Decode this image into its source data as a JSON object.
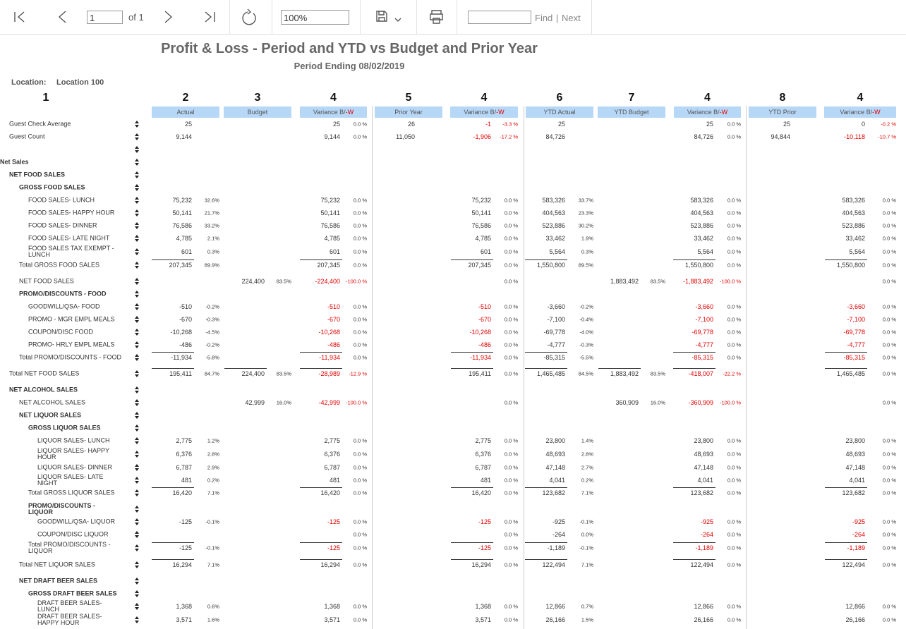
{
  "toolbar": {
    "page": "1",
    "of": "of 1",
    "zoom": "100%",
    "find": "Find",
    "divider": "|",
    "next": "Next"
  },
  "report": {
    "title": "Profit & Loss - Period and YTD vs Budget and Prior Year",
    "subtitle": "Period Ending 08/02/2019",
    "location_label": "Location:",
    "location": "Location 100",
    "column_numbers": [
      "1",
      "2",
      "3",
      "4",
      "5",
      "4",
      "6",
      "7",
      "4",
      "8",
      "4"
    ],
    "columns": [
      "Actual",
      "Budget",
      {
        "text": "Variance B/",
        "suffix": "-W"
      },
      "Prior Year",
      {
        "text": "Variance B/",
        "suffix": "-W"
      },
      "YTD Actual",
      "YTD Budget",
      {
        "text": "Variance B/",
        "suffix": "-W"
      },
      "YTD Prior",
      {
        "text": "Variance B/",
        "suffix": "-W"
      }
    ],
    "rows": [
      {
        "label": "Guest Check Average",
        "cells": [
          "25",
          null,
          null,
          null,
          "25",
          "0.0 %",
          "26",
          "-1",
          "-3.3 %",
          "25",
          null,
          null,
          null,
          "25",
          "0.0 %",
          "25",
          "0",
          "-0.2 %"
        ]
      },
      {
        "label": "Guest Count",
        "cells": [
          "9,144",
          null,
          null,
          null,
          "9,144",
          "0.0 %",
          "11,050",
          "-1,906",
          "-17.2 %",
          "84,726",
          null,
          null,
          null,
          "84,726",
          "0.0 %",
          "94,844",
          "-10,118",
          "-10.7 %"
        ]
      },
      {
        "label": "Net Sales"
      },
      {
        "label": "NET FOOD SALES"
      },
      {
        "label": "GROSS FOOD SALES"
      },
      {
        "label": "FOOD SALES- LUNCH",
        "cells": [
          "75,232",
          "32.6%",
          null,
          null,
          "75,232",
          "0.0 %",
          null,
          "75,232",
          "0.0 %",
          "583,326",
          "33.7%",
          null,
          null,
          "583,326",
          "0.0 %",
          null,
          "583,326",
          "0.0 %"
        ]
      },
      {
        "label": "FOOD SALES- HAPPY HOUR",
        "cells": [
          "50,141",
          "21.7%",
          null,
          null,
          "50,141",
          "0.0 %",
          null,
          "50,141",
          "0.0 %",
          "404,563",
          "23.3%",
          null,
          null,
          "404,563",
          "0.0 %",
          null,
          "404,563",
          "0.0 %"
        ]
      },
      {
        "label": "FOOD SALES- DINNER",
        "cells": [
          "76,586",
          "33.2%",
          null,
          null,
          "76,586",
          "0.0 %",
          null,
          "76,586",
          "0.0 %",
          "523,886",
          "30.2%",
          null,
          null,
          "523,886",
          "0.0 %",
          null,
          "523,886",
          "0.0 %"
        ]
      },
      {
        "label": "FOOD SALES- LATE NIGHT",
        "cells": [
          "4,785",
          "2.1%",
          null,
          null,
          "4,785",
          "0.0 %",
          null,
          "4,785",
          "0.0 %",
          "33,462",
          "1.9%",
          null,
          null,
          "33,462",
          "0.0 %",
          null,
          "33,462",
          "0.0 %"
        ]
      },
      {
        "label": "FOOD SALES TAX EXEMPT - LUNCH",
        "cells": [
          "601",
          "0.3%",
          null,
          null,
          "601",
          "0.0 %",
          null,
          "601",
          "0.0 %",
          "5,564",
          "0.3%",
          null,
          null,
          "5,564",
          "0.0 %",
          null,
          "5,564",
          "0.0 %"
        ]
      },
      {
        "label": "Total GROSS FOOD SALES",
        "cells": [
          "207,345",
          "89.9%",
          null,
          null,
          "207,345",
          "0.0 %",
          null,
          "207,345",
          "0.0 %",
          "1,550,800",
          "89.5%",
          null,
          null,
          "1,550,800",
          "0.0 %",
          null,
          "1,550,800",
          "0.0 %"
        ]
      },
      {
        "label": "NET FOOD SALES",
        "cells": [
          null,
          null,
          "224,400",
          "83.5%",
          "-224,400",
          "-100.0 %",
          null,
          null,
          "0.0 %",
          null,
          null,
          "1,883,492",
          "83.5%",
          "-1,883,492",
          "-100.0 %",
          null,
          null,
          "0.0 %"
        ]
      },
      {
        "label": "PROMO/DISCOUNTS - FOOD"
      },
      {
        "label": "GOODWILL/QSA- FOOD",
        "cells": [
          "-510",
          "-0.2%",
          null,
          null,
          "-510",
          "0.0 %",
          null,
          "-510",
          "0.0 %",
          "-3,660",
          "-0.2%",
          null,
          null,
          "-3,660",
          "0.0 %",
          null,
          "-3,660",
          "0.0 %"
        ]
      },
      {
        "label": "PROMO - MGR EMPL MEALS",
        "cells": [
          "-670",
          "-0.3%",
          null,
          null,
          "-670",
          "0.0 %",
          null,
          "-670",
          "0.0 %",
          "-7,100",
          "-0.4%",
          null,
          null,
          "-7,100",
          "0.0 %",
          null,
          "-7,100",
          "0.0 %"
        ]
      },
      {
        "label": "COUPON/DISC FOOD",
        "cells": [
          "-10,268",
          "-4.5%",
          null,
          null,
          "-10,268",
          "0.0 %",
          null,
          "-10,268",
          "0.0 %",
          "-69,778",
          "-4.0%",
          null,
          null,
          "-69,778",
          "0.0 %",
          null,
          "-69,778",
          "0.0 %"
        ]
      },
      {
        "label": "PROMO- HRLY EMPL MEALS",
        "cells": [
          "-486",
          "-0.2%",
          null,
          null,
          "-486",
          "0.0 %",
          null,
          "-486",
          "0.0 %",
          "-4,777",
          "-0.3%",
          null,
          null,
          "-4,777",
          "0.0 %",
          null,
          "-4,777",
          "0.0 %"
        ]
      },
      {
        "label": "Total PROMO/DISCOUNTS - FOOD",
        "cells": [
          "-11,934",
          "-5.8%",
          null,
          null,
          "-11,934",
          "0.0 %",
          null,
          "-11,934",
          "0.0 %",
          "-85,315",
          "-5.5%",
          null,
          null,
          "-85,315",
          "0.0 %",
          null,
          "-85,315",
          "0.0 %"
        ]
      },
      {
        "label": "Total NET FOOD SALES",
        "cells": [
          "195,411",
          "84.7%",
          "224,400",
          "83.5%",
          "-28,989",
          "-12.9 %",
          null,
          "195,411",
          "0.0 %",
          "1,465,485",
          "84.5%",
          "1,883,492",
          "83.5%",
          "-418,007",
          "-22.2 %",
          null,
          "1,465,485",
          "0.0 %"
        ]
      },
      {
        "label": "NET ALCOHOL SALES"
      },
      {
        "label": "NET ALCOHOL SALES",
        "cells": [
          null,
          null,
          "42,999",
          "16.0%",
          "-42,999",
          "-100.0 %",
          null,
          null,
          "0.0 %",
          null,
          null,
          "360,909",
          "16.0%",
          "-360,909",
          "-100.0 %",
          null,
          null,
          "0.0 %"
        ]
      },
      {
        "label": "NET LIQUOR SALES"
      },
      {
        "label": "GROSS LIQUOR SALES"
      },
      {
        "label": "LIQUOR SALES- LUNCH",
        "cells": [
          "2,775",
          "1.2%",
          null,
          null,
          "2,775",
          "0.0 %",
          null,
          "2,775",
          "0.0 %",
          "23,800",
          "1.4%",
          null,
          null,
          "23,800",
          "0.0 %",
          null,
          "23,800",
          "0.0 %"
        ]
      },
      {
        "label": "LIQUOR SALES- HAPPY HOUR",
        "cells": [
          "6,376",
          "2.8%",
          null,
          null,
          "6,376",
          "0.0 %",
          null,
          "6,376",
          "0.0 %",
          "48,693",
          "2.8%",
          null,
          null,
          "48,693",
          "0.0 %",
          null,
          "48,693",
          "0.0 %"
        ]
      },
      {
        "label": "LIQUOR SALES- DINNER",
        "cells": [
          "6,787",
          "2.9%",
          null,
          null,
          "6,787",
          "0.0 %",
          null,
          "6,787",
          "0.0 %",
          "47,148",
          "2.7%",
          null,
          null,
          "47,148",
          "0.0 %",
          null,
          "47,148",
          "0.0 %"
        ]
      },
      {
        "label": "LIQUOR SALES- LATE NIGHT",
        "cells": [
          "481",
          "0.2%",
          null,
          null,
          "481",
          "0.0 %",
          null,
          "481",
          "0.0 %",
          "4,041",
          "0.2%",
          null,
          null,
          "4,041",
          "0.0 %",
          null,
          "4,041",
          "0.0 %"
        ]
      },
      {
        "label": "Total GROSS LIQUOR SALES",
        "cells": [
          "16,420",
          "7.1%",
          null,
          null,
          "16,420",
          "0.0 %",
          null,
          "16,420",
          "0.0 %",
          "123,682",
          "7.1%",
          null,
          null,
          "123,682",
          "0.0 %",
          null,
          "123,682",
          "0.0 %"
        ]
      },
      {
        "label": "PROMO/DISCOUNTS - LIQUOR"
      },
      {
        "label": "GOODWILL/QSA- LIQUOR",
        "cells": [
          "-125",
          "-0.1%",
          null,
          null,
          "-125",
          "0.0 %",
          null,
          "-125",
          "0.0 %",
          "-925",
          "-0.1%",
          null,
          null,
          "-925",
          "0.0 %",
          null,
          "-925",
          "0.0 %"
        ]
      },
      {
        "label": "COUPON/DISC LIQUOR",
        "cells": [
          null,
          null,
          null,
          null,
          null,
          "0.0 %",
          null,
          null,
          "0.0 %",
          "-264",
          "0.0%",
          null,
          null,
          "-264",
          "0.0 %",
          null,
          "-264",
          "0.0 %"
        ]
      },
      {
        "label": "Total PROMO/DISCOUNTS - LIQUOR",
        "cells": [
          "-125",
          "-0.1%",
          null,
          null,
          "-125",
          "0.0 %",
          null,
          "-125",
          "0.0 %",
          "-1,189",
          "-0.1%",
          null,
          null,
          "-1,189",
          "0.0 %",
          null,
          "-1,189",
          "0.0 %"
        ]
      },
      {
        "label": "Total NET LIQUOR SALES",
        "cells": [
          "16,294",
          "7.1%",
          null,
          null,
          "16,294",
          "0.0 %",
          null,
          "16,294",
          "0.0 %",
          "122,494",
          "7.1%",
          null,
          null,
          "122,494",
          "0.0 %",
          null,
          "122,494",
          "0.0 %"
        ]
      },
      {
        "label": "NET DRAFT BEER SALES"
      },
      {
        "label": "GROSS DRAFT BEER SALES"
      },
      {
        "label": "DRAFT BEER SALES- LUNCH",
        "cells": [
          "1,368",
          "0.6%",
          null,
          null,
          "1,368",
          "0.0 %",
          null,
          "1,368",
          "0.0 %",
          "12,866",
          "0.7%",
          null,
          null,
          "12,866",
          "0.0 %",
          null,
          "12,866",
          "0.0 %"
        ]
      },
      {
        "label": "DRAFT BEER SALES- HAPPY HOUR",
        "cells": [
          "3,571",
          "1.6%",
          null,
          null,
          "3,571",
          "0.0 %",
          null,
          "3,571",
          "0.0 %",
          "26,166",
          "1.5%",
          null,
          null,
          "26,166",
          "0.0 %",
          null,
          "26,166",
          "0.0 %"
        ]
      }
    ]
  }
}
